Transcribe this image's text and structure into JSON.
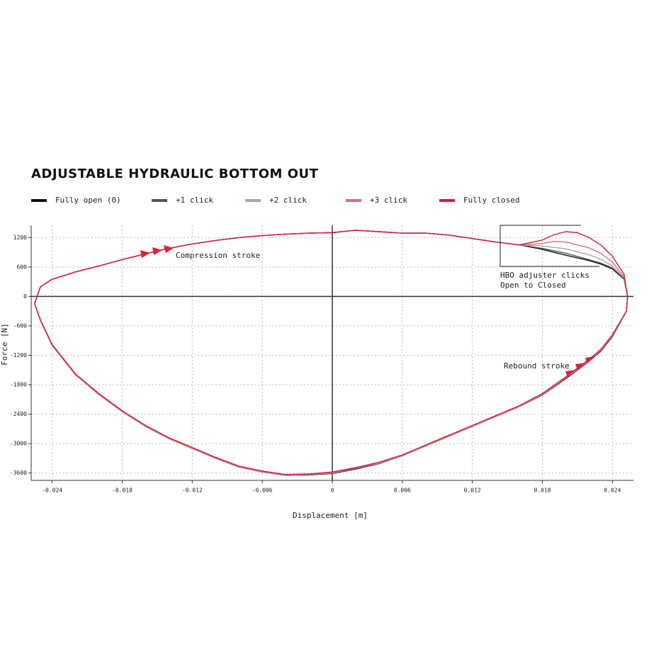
{
  "chart_data": {
    "type": "line",
    "title": "ADJUSTABLE HYDRAULIC BOTTOM OUT",
    "x_label": "Displacement [m]",
    "y_label": "Force [N]",
    "xlim": [
      -0.0258,
      0.0258
    ],
    "ylim": [
      -3750,
      1450
    ],
    "xticks": [
      -0.024,
      -0.018,
      -0.012,
      -0.006,
      0,
      0.006,
      0.012,
      0.018,
      0.024
    ],
    "yticks": [
      1200,
      600,
      0,
      -600,
      -1200,
      -1800,
      -2400,
      -3000,
      -3600
    ],
    "grid": true,
    "annotations": [
      "Compression stroke",
      "Rebound stroke",
      "HBO adjuster clicks",
      "Open to Closed"
    ],
    "series": [
      {
        "name": "Fully open (0)",
        "color": "#111111",
        "x": [
          -0.0253,
          -0.025,
          -0.024,
          -0.022,
          -0.02,
          -0.018,
          -0.016,
          -0.014,
          -0.012,
          -0.01,
          -0.008,
          -0.006,
          -0.004,
          -0.002,
          0,
          0.002,
          0.004,
          0.006,
          0.008,
          0.01,
          0.012,
          0.014,
          0.016,
          0.018,
          0.02,
          0.022,
          0.023,
          0.024,
          0.025,
          0.0253,
          0.0252,
          0.024,
          0.023,
          0.022,
          0.02,
          0.018,
          0.016,
          0.014,
          0.012,
          0.01,
          0.008,
          0.006,
          0.004,
          0.002,
          0,
          -0.002,
          -0.004,
          -0.006,
          -0.008,
          -0.01,
          -0.012,
          -0.014,
          -0.016,
          -0.018,
          -0.02,
          -0.022,
          -0.024,
          -0.025,
          -0.0255,
          -0.0253
        ],
        "values": [
          0,
          200,
          350,
          500,
          620,
          750,
          870,
          980,
          1070,
          1140,
          1200,
          1240,
          1270,
          1290,
          1300,
          1350,
          1320,
          1290,
          1290,
          1250,
          1180,
          1110,
          1050,
          960,
          840,
          730,
          660,
          560,
          350,
          0,
          -300,
          -820,
          -1120,
          -1320,
          -1680,
          -2010,
          -2250,
          -2450,
          -2650,
          -2850,
          -3050,
          -3250,
          -3410,
          -3520,
          -3610,
          -3640,
          -3650,
          -3580,
          -3480,
          -3300,
          -3100,
          -2900,
          -2650,
          -2350,
          -2000,
          -1600,
          -1000,
          -500,
          -150,
          0
        ]
      },
      {
        "name": "+1 click",
        "color": "#555555",
        "x": [
          -0.0253,
          -0.025,
          -0.024,
          -0.022,
          -0.02,
          -0.018,
          -0.016,
          -0.014,
          -0.012,
          -0.01,
          -0.008,
          -0.006,
          -0.004,
          -0.002,
          0,
          0.002,
          0.004,
          0.006,
          0.008,
          0.01,
          0.012,
          0.014,
          0.016,
          0.018,
          0.02,
          0.022,
          0.023,
          0.024,
          0.025,
          0.0253,
          0.0252,
          0.024,
          0.023,
          0.022,
          0.02,
          0.018,
          0.016,
          0.014,
          0.012,
          0.01,
          0.008,
          0.006,
          0.004,
          0.002,
          0,
          -0.002,
          -0.004,
          -0.006,
          -0.008,
          -0.01,
          -0.012,
          -0.014,
          -0.016,
          -0.018,
          -0.02,
          -0.022,
          -0.024,
          -0.025,
          -0.0255,
          -0.0253
        ],
        "values": [
          0,
          200,
          350,
          500,
          620,
          750,
          870,
          980,
          1070,
          1140,
          1200,
          1240,
          1270,
          1290,
          1300,
          1350,
          1320,
          1290,
          1290,
          1250,
          1180,
          1110,
          1050,
          980,
          880,
          750,
          680,
          580,
          360,
          0,
          -300,
          -810,
          -1110,
          -1310,
          -1670,
          -2005,
          -2250,
          -2450,
          -2650,
          -2850,
          -3050,
          -3250,
          -3400,
          -3510,
          -3600,
          -3640,
          -3650,
          -3580,
          -3480,
          -3300,
          -3100,
          -2900,
          -2650,
          -2350,
          -2000,
          -1600,
          -1000,
          -500,
          -150,
          0
        ]
      },
      {
        "name": "+2 click",
        "color": "#b3a3a3",
        "x": [
          -0.0253,
          -0.025,
          -0.024,
          -0.022,
          -0.02,
          -0.018,
          -0.016,
          -0.014,
          -0.012,
          -0.01,
          -0.008,
          -0.006,
          -0.004,
          -0.002,
          0,
          0.002,
          0.004,
          0.006,
          0.008,
          0.01,
          0.012,
          0.014,
          0.016,
          0.018,
          0.02,
          0.022,
          0.023,
          0.024,
          0.025,
          0.0253,
          0.0252,
          0.024,
          0.023,
          0.022,
          0.02,
          0.018,
          0.016,
          0.014,
          0.012,
          0.01,
          0.008,
          0.006,
          0.004,
          0.002,
          0,
          -0.002,
          -0.004,
          -0.006,
          -0.008,
          -0.01,
          -0.012,
          -0.014,
          -0.016,
          -0.018,
          -0.02,
          -0.022,
          -0.024,
          -0.025,
          -0.0255,
          -0.0253
        ],
        "values": [
          0,
          200,
          350,
          500,
          620,
          750,
          870,
          980,
          1070,
          1140,
          1200,
          1240,
          1270,
          1290,
          1300,
          1350,
          1320,
          1290,
          1290,
          1250,
          1180,
          1110,
          1050,
          1030,
          970,
          850,
          760,
          620,
          380,
          0,
          -300,
          -800,
          -1100,
          -1300,
          -1660,
          -2000,
          -2250,
          -2450,
          -2650,
          -2850,
          -3050,
          -3250,
          -3400,
          -3500,
          -3600,
          -3630,
          -3650,
          -3580,
          -3480,
          -3300,
          -3100,
          -2900,
          -2650,
          -2350,
          -2000,
          -1600,
          -1000,
          -500,
          -150,
          0
        ]
      },
      {
        "name": "+3 click",
        "color": "#e06b7c",
        "x": [
          -0.0253,
          -0.025,
          -0.024,
          -0.022,
          -0.02,
          -0.018,
          -0.016,
          -0.014,
          -0.012,
          -0.01,
          -0.008,
          -0.006,
          -0.004,
          -0.002,
          0,
          0.002,
          0.004,
          0.006,
          0.008,
          0.01,
          0.012,
          0.014,
          0.016,
          0.018,
          0.019,
          0.02,
          0.022,
          0.023,
          0.024,
          0.025,
          0.0253,
          0.0252,
          0.024,
          0.023,
          0.022,
          0.02,
          0.018,
          0.016,
          0.014,
          0.012,
          0.01,
          0.008,
          0.006,
          0.004,
          0.002,
          0,
          -0.002,
          -0.004,
          -0.006,
          -0.008,
          -0.01,
          -0.012,
          -0.014,
          -0.016,
          -0.018,
          -0.02,
          -0.022,
          -0.024,
          -0.025,
          -0.0255,
          -0.0253
        ],
        "values": [
          0,
          200,
          350,
          500,
          620,
          750,
          870,
          980,
          1070,
          1140,
          1200,
          1240,
          1270,
          1290,
          1300,
          1350,
          1320,
          1290,
          1290,
          1250,
          1180,
          1110,
          1050,
          1080,
          1120,
          1110,
          990,
          880,
          700,
          400,
          0,
          -300,
          -790,
          -1090,
          -1290,
          -1650,
          -1990,
          -2240,
          -2440,
          -2640,
          -2840,
          -3040,
          -3240,
          -3390,
          -3500,
          -3590,
          -3630,
          -3640,
          -3570,
          -3470,
          -3290,
          -3090,
          -2890,
          -2640,
          -2340,
          -1990,
          -1590,
          -990,
          -490,
          -150,
          0
        ]
      },
      {
        "name": "Fully closed",
        "color": "#d41e3c",
        "x": [
          -0.0253,
          -0.025,
          -0.024,
          -0.022,
          -0.02,
          -0.018,
          -0.016,
          -0.014,
          -0.012,
          -0.01,
          -0.008,
          -0.006,
          -0.004,
          -0.002,
          0,
          0.002,
          0.004,
          0.006,
          0.008,
          0.01,
          0.012,
          0.014,
          0.016,
          0.018,
          0.019,
          0.02,
          0.021,
          0.022,
          0.023,
          0.024,
          0.025,
          0.0253,
          0.0252,
          0.024,
          0.023,
          0.022,
          0.02,
          0.018,
          0.016,
          0.014,
          0.012,
          0.01,
          0.008,
          0.006,
          0.004,
          0.002,
          0,
          -0.002,
          -0.004,
          -0.006,
          -0.008,
          -0.01,
          -0.012,
          -0.014,
          -0.016,
          -0.018,
          -0.02,
          -0.022,
          -0.024,
          -0.025,
          -0.0255,
          -0.0253
        ],
        "values": [
          0,
          200,
          350,
          500,
          620,
          750,
          870,
          980,
          1070,
          1140,
          1200,
          1240,
          1270,
          1290,
          1300,
          1350,
          1320,
          1290,
          1290,
          1250,
          1180,
          1110,
          1050,
          1150,
          1260,
          1320,
          1300,
          1200,
          1050,
          820,
          450,
          0,
          -300,
          -780,
          -1080,
          -1280,
          -1640,
          -1980,
          -2230,
          -2430,
          -2630,
          -2830,
          -3030,
          -3230,
          -3380,
          -3490,
          -3580,
          -3620,
          -3630,
          -3560,
          -3460,
          -3280,
          -3080,
          -2880,
          -2630,
          -2330,
          -1980,
          -1580,
          -980,
          -480,
          -150,
          0
        ]
      }
    ]
  }
}
